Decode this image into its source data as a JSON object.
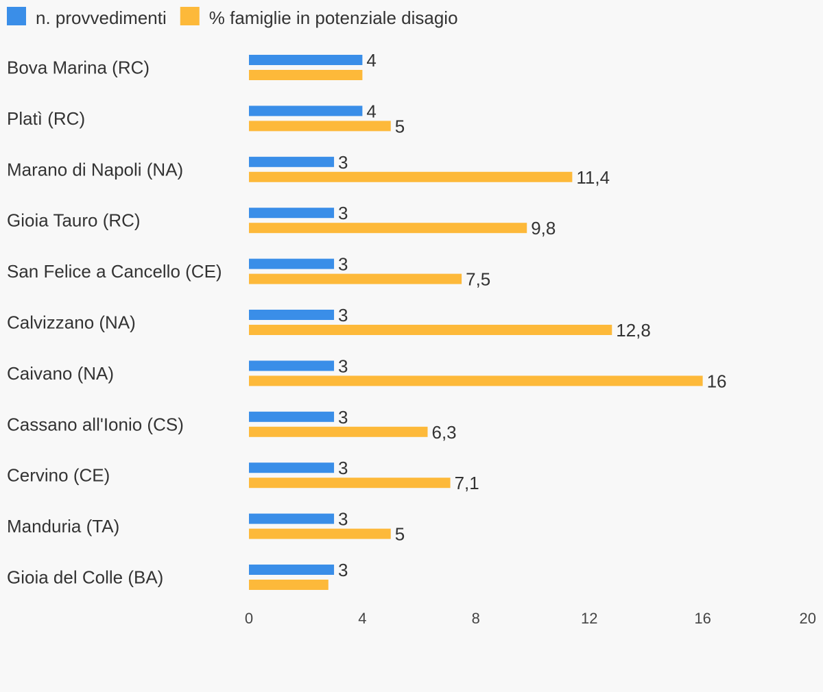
{
  "chart_data": {
    "type": "bar",
    "orientation": "horizontal",
    "categories": [
      "Bova Marina (RC)",
      "Platì (RC)",
      "Marano di Napoli (NA)",
      "Gioia Tauro (RC)",
      "San Felice a Cancello (CE)",
      "Calvizzano (NA)",
      "Caivano (NA)",
      "Cassano all'Ionio (CS)",
      "Cervino (CE)",
      "Manduria (TA)",
      "Gioia del Colle (BA)"
    ],
    "series": [
      {
        "name": "n. provvedimenti",
        "color": "#3a8ee8",
        "values": [
          4,
          4,
          3,
          3,
          3,
          3,
          3,
          3,
          3,
          3,
          3
        ],
        "labels": [
          "4",
          "4",
          "3",
          "3",
          "3",
          "3",
          "3",
          "3",
          "3",
          "3",
          "3"
        ]
      },
      {
        "name": "% famiglie in potenziale disagio",
        "color": "#fdb93a",
        "values": [
          4,
          5,
          11.4,
          9.8,
          7.5,
          12.8,
          16,
          6.3,
          7.1,
          5,
          2.8
        ],
        "labels": [
          "",
          "5",
          "11,4",
          "9,8",
          "7,5",
          "12,8",
          "16",
          "6,3",
          "7,1",
          "5",
          ""
        ]
      }
    ],
    "xlim": [
      0,
      20
    ],
    "xticks": [
      "0",
      "4",
      "8",
      "12",
      "16",
      "20"
    ],
    "xtick_values": [
      0,
      4,
      8,
      12,
      16,
      20
    ],
    "grid": false,
    "legend": "top-left",
    "title": "",
    "xlabel": "",
    "ylabel": ""
  }
}
